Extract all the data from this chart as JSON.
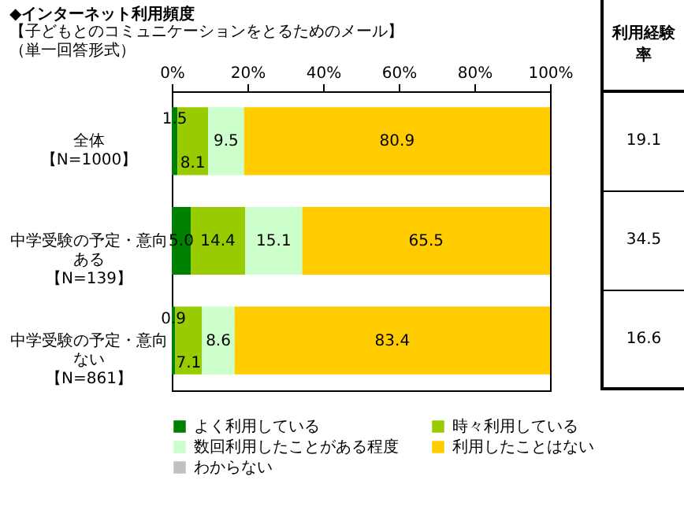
{
  "chart_data": {
    "type": "bar",
    "orientation": "horizontal",
    "stacked": true,
    "title": "◆インターネット利用頻度",
    "subtitle": "【子どもとのコミュニケーションをとるためのメール】",
    "categories": [
      "全体【N=1000】",
      "中学受験の予定・意向ある【N=139】",
      "中学受験の予定・意向ない【N=861】"
    ],
    "series": [
      {
        "name": "よく利用している",
        "color": "#008000",
        "values": [
          1.5,
          5.0,
          0.9
        ],
        "value_labels": [
          "1.5",
          "5.0",
          "0.9"
        ]
      },
      {
        "name": "時々利用している",
        "color": "#99cc00",
        "values": [
          8.1,
          14.4,
          7.1
        ],
        "value_labels": [
          "8.1",
          "14.4",
          "7.1"
        ]
      },
      {
        "name": "数回利用したことがある程度",
        "color": "#ccffcc",
        "values": [
          9.5,
          15.1,
          8.6
        ],
        "value_labels": [
          "9.5",
          "15.1",
          "8.6"
        ]
      },
      {
        "name": "利用したことはない",
        "color": "#ffcc00",
        "values": [
          80.9,
          65.5,
          83.4
        ],
        "value_labels": [
          "80.9",
          "65.5",
          "83.4"
        ]
      },
      {
        "name": "わからない",
        "color": "#c0c0c0",
        "values": [
          0,
          0,
          0
        ],
        "value_labels": [
          null,
          null,
          null
        ]
      }
    ],
    "xlim": [
      0,
      100
    ],
    "xticks": [
      {
        "value": 0,
        "label": "0%"
      },
      {
        "value": 20,
        "label": "20%"
      },
      {
        "value": 40,
        "label": "40%"
      },
      {
        "value": 60,
        "label": "60%"
      },
      {
        "value": 80,
        "label": "80%"
      },
      {
        "value": 100,
        "label": "100%"
      }
    ],
    "legend": "bottom",
    "annotations": [
      "（単一回答形式）",
      "利用経験率",
      "19.1",
      "34.5",
      "16.6"
    ]
  }
}
